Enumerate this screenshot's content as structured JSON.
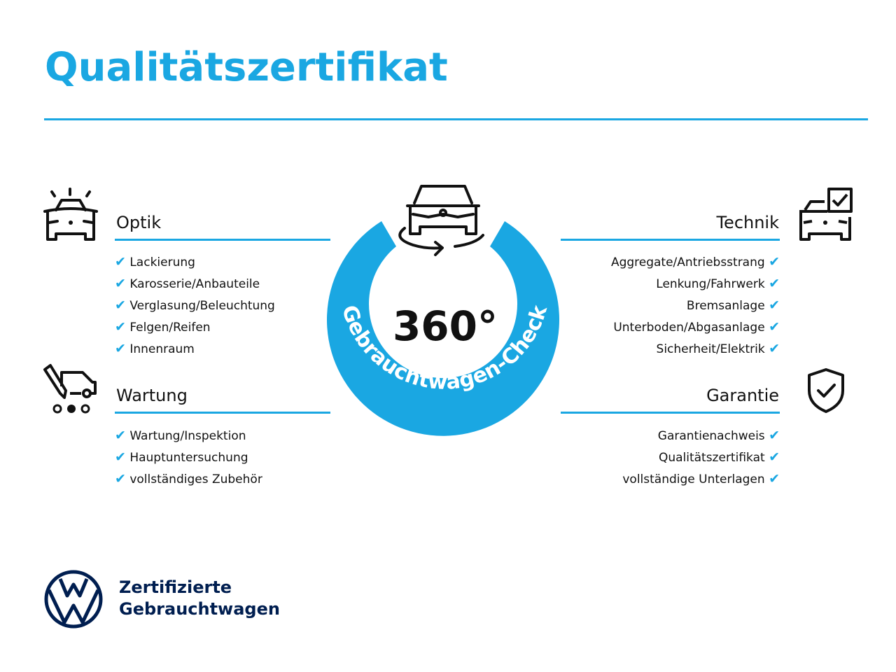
{
  "title": "Qualitätszertifikat",
  "center": {
    "degrees": "360°",
    "arc_text": "Gebrauchtwagen-Check"
  },
  "sections": {
    "optik": {
      "heading": "Optik",
      "items": [
        "Lackierung",
        "Karosserie/Anbauteile",
        "Verglasung/Beleuchtung",
        "Felgen/Reifen",
        "Innenraum"
      ]
    },
    "wartung": {
      "heading": "Wartung",
      "items": [
        "Wartung/Inspektion",
        "Hauptuntersuchung",
        "vollständiges Zubehör"
      ]
    },
    "technik": {
      "heading": "Technik",
      "items": [
        "Aggregate/Antriebsstrang",
        "Lenkung/Fahrwerk",
        "Bremsanlage",
        "Unterboden/Abgasanlage",
        "Sicherheit/Elektrik"
      ]
    },
    "garantie": {
      "heading": "Garantie",
      "items": [
        "Garantienachweis",
        "Qualitätszertifikat",
        "vollständige Unterlagen"
      ]
    }
  },
  "check_glyph": "✔",
  "brand": {
    "line1": "Zertifizierte",
    "line2": "Gebrauchtwagen"
  },
  "colors": {
    "accent": "#1aa7e2",
    "brand_navy": "#001e50"
  }
}
